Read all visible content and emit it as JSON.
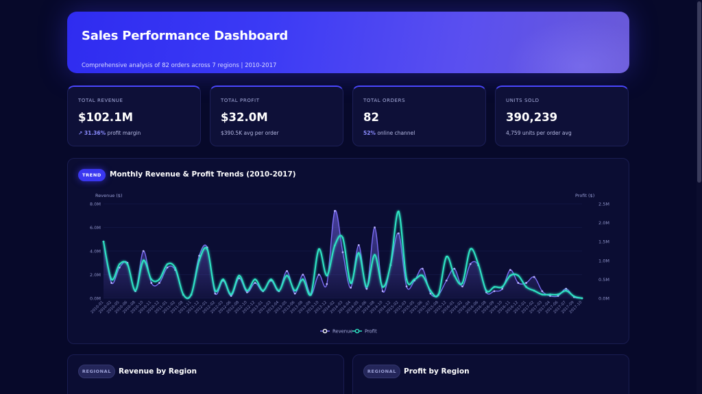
{
  "header": {
    "title": "Sales Performance Dashboard",
    "subtitle": "Comprehensive analysis of 82 orders across 7 regions | 2010-2017"
  },
  "kpis": [
    {
      "label": "TOTAL REVENUE",
      "value": "$102.1M",
      "note_accent": "↗ 31.36%",
      "note": " profit margin"
    },
    {
      "label": "TOTAL PROFIT",
      "value": "$32.0M",
      "note_accent": "",
      "note": "$390.5K avg per order"
    },
    {
      "label": "TOTAL ORDERS",
      "value": "82",
      "note_accent": "52%",
      "note": " online channel"
    },
    {
      "label": "UNITS SOLD",
      "value": "390,239",
      "note_accent": "",
      "note": "4,759 units per order avg"
    }
  ],
  "trend_panel": {
    "badge": "TREND",
    "title": "Monthly Revenue & Profit Trends (2010-2017)"
  },
  "region_panels": [
    {
      "badge": "REGIONAL",
      "title": "Revenue by Region"
    },
    {
      "badge": "REGIONAL",
      "title": "Profit by Region"
    }
  ],
  "colors": {
    "revenue": "#7b6cf6",
    "profit": "#2ee6c4",
    "accent": "#3a37f0",
    "background": "#07092a"
  },
  "chart_data": {
    "type": "line",
    "title": "Monthly Revenue & Profit Trends (2010-2017)",
    "ylabel_left": "Revenue ($)",
    "ylabel_right": "Profit ($)",
    "ylim_left": [
      0,
      8000000
    ],
    "ylim_right": [
      0,
      2500000
    ],
    "yticks_left": [
      "0.0M",
      "2.0M",
      "4.0M",
      "6.0M",
      "8.0M"
    ],
    "yticks_right": [
      "0.0M",
      "0.5M",
      "1.0M",
      "1.5M",
      "2.0M",
      "2.5M"
    ],
    "legend": "bottom-center",
    "x": [
      "2010-01",
      "2010-02",
      "2010-05",
      "2010-06",
      "2010-08",
      "2010-10",
      "2010-11",
      "2010-12",
      "2011-01",
      "2011-02",
      "2011-08",
      "2011-11",
      "2011-12",
      "2012-01",
      "2012-02",
      "2012-03",
      "2012-06",
      "2012-08",
      "2012-10",
      "2012-12",
      "2013-01",
      "2013-03",
      "2013-04",
      "2013-05",
      "2013-06",
      "2013-08",
      "2013-09",
      "2013-10",
      "2013-12",
      "2014-02",
      "2014-03",
      "2014-04",
      "2014-05",
      "2014-06",
      "2014-08",
      "2014-10",
      "2014-12",
      "2015-02",
      "2015-03",
      "2015-05",
      "2015-06",
      "2015-07",
      "2015-08",
      "2015-12",
      "2016-01",
      "2016-02",
      "2016-04",
      "2016-06",
      "2016-08",
      "2016-09",
      "2016-10",
      "2016-11",
      "2016-12",
      "2017-01",
      "2017-02",
      "2017-03",
      "2017-04",
      "2017-06",
      "2017-07",
      "2017-09",
      "2017-10"
    ],
    "series": [
      {
        "name": "Revenue",
        "axis": "left",
        "values": [
          4.8,
          1.3,
          2.6,
          3.0,
          0.6,
          4.0,
          1.3,
          1.3,
          2.6,
          2.4,
          0.3,
          0.3,
          3.6,
          4.3,
          0.4,
          1.5,
          0.2,
          1.7,
          0.5,
          1.3,
          0.6,
          1.5,
          0.6,
          2.3,
          0.4,
          2.0,
          0.3,
          2.0,
          1.2,
          7.4,
          3.9,
          0.9,
          4.5,
          0.8,
          6.0,
          0.6,
          2.8,
          5.5,
          1.0,
          1.5,
          2.5,
          0.4,
          0.3,
          1.5,
          2.5,
          1.0,
          2.9,
          2.8,
          0.5,
          0.6,
          0.8,
          2.4,
          1.3,
          1.3,
          1.8,
          0.6,
          0.2,
          0.2,
          0.8,
          0.1,
          0.0
        ]
      },
      {
        "name": "Profit",
        "axis": "right",
        "values": [
          1.5,
          0.5,
          0.9,
          0.9,
          0.2,
          1.0,
          0.5,
          0.5,
          0.9,
          0.8,
          0.1,
          0.1,
          1.0,
          1.3,
          0.2,
          0.5,
          0.1,
          0.6,
          0.2,
          0.5,
          0.2,
          0.5,
          0.2,
          0.6,
          0.2,
          0.5,
          0.1,
          1.3,
          0.6,
          1.4,
          1.6,
          0.4,
          1.2,
          0.3,
          1.15,
          0.3,
          0.9,
          2.3,
          0.5,
          0.5,
          0.6,
          0.2,
          0.1,
          1.1,
          0.6,
          0.4,
          1.3,
          0.9,
          0.2,
          0.3,
          0.3,
          0.6,
          0.6,
          0.3,
          0.2,
          0.1,
          0.1,
          0.1,
          0.2,
          0.05,
          0.0
        ]
      }
    ]
  }
}
